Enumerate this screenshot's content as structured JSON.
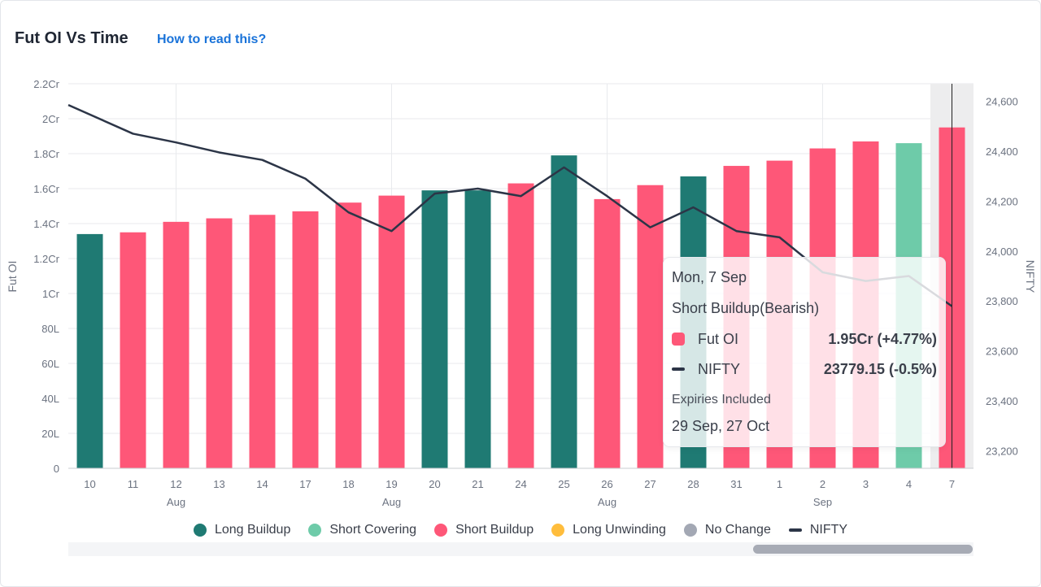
{
  "header": {
    "title": "Fut OI Vs Time",
    "help_link": "How to read this?"
  },
  "colors": {
    "long_buildup": "#1f7a73",
    "short_covering": "#6ecba9",
    "short_buildup": "#fe5778",
    "long_unwinding": "#ffbd3c",
    "no_change": "#a3a8b4",
    "nifty_line": "#2c3547",
    "gridline": "#e8eaed",
    "highlight_band": "#ededee"
  },
  "legend": [
    {
      "label": "Long Buildup",
      "color": "#1f7a73",
      "shape": "circle"
    },
    {
      "label": "Short Covering",
      "color": "#6ecba9",
      "shape": "circle"
    },
    {
      "label": "Short Buildup",
      "color": "#fe5778",
      "shape": "circle"
    },
    {
      "label": "Long Unwinding",
      "color": "#ffbd3c",
      "shape": "circle"
    },
    {
      "label": "No Change",
      "color": "#a3a8b4",
      "shape": "circle"
    },
    {
      "label": "NIFTY",
      "color": "#2c3547",
      "shape": "line"
    }
  ],
  "tooltip": {
    "date": "Mon, 7 Sep",
    "state": "Short Buildup(Bearish)",
    "rows": [
      {
        "label": "Fut OI",
        "value": "1.95Cr (+4.77%)",
        "icon": "square-swatch",
        "color": "#fe5778"
      },
      {
        "label": "NIFTY",
        "value": "23779.15 (-0.5%)",
        "icon": "line-swatch",
        "color": "#2c3547"
      }
    ],
    "expiries_label": "Expiries Included",
    "expiries": "29 Sep, 27 Oct"
  },
  "chart_data": {
    "type": "bar",
    "title": "Fut OI Vs Time",
    "ylabel": "Fut OI",
    "y2label": "NIFTY",
    "ylim": [
      0,
      22000000
    ],
    "y2lim": [
      23130,
      24670
    ],
    "y_ticks": [
      "0",
      "20L",
      "40L",
      "60L",
      "80L",
      "1Cr",
      "1.2Cr",
      "1.4Cr",
      "1.6Cr",
      "1.8Cr",
      "2Cr",
      "2.2Cr"
    ],
    "y2_ticks": [
      "23,200",
      "23,400",
      "23,600",
      "23,800",
      "24,000",
      "24,200",
      "24,400",
      "24,600"
    ],
    "categories": [
      "10",
      "11",
      "12",
      "13",
      "14",
      "17",
      "18",
      "19",
      "20",
      "21",
      "24",
      "25",
      "26",
      "27",
      "28",
      "31",
      "1",
      "2",
      "3",
      "4",
      "7"
    ],
    "month_labels": [
      {
        "label": "Aug",
        "under": "12"
      },
      {
        "label": "Aug",
        "under": "19"
      },
      {
        "label": "Aug",
        "under": "26"
      },
      {
        "label": "Sep",
        "under": "2"
      }
    ],
    "series": [
      {
        "name": "Fut OI",
        "values": [
          13400000,
          13500000,
          14100000,
          14300000,
          14500000,
          14700000,
          15200000,
          15600000,
          15900000,
          15900000,
          16300000,
          17900000,
          15400000,
          16200000,
          16700000,
          17300000,
          17600000,
          18300000,
          18700000,
          18600000,
          19500000
        ],
        "states": [
          "long_buildup",
          "short_buildup",
          "short_buildup",
          "short_buildup",
          "short_buildup",
          "short_buildup",
          "short_buildup",
          "short_buildup",
          "long_buildup",
          "long_buildup",
          "short_buildup",
          "long_buildup",
          "short_buildup",
          "short_buildup",
          "long_buildup",
          "short_buildup",
          "short_buildup",
          "short_buildup",
          "short_buildup",
          "short_covering",
          "short_buildup"
        ]
      },
      {
        "name": "NIFTY",
        "type": "line",
        "axis": "right",
        "x_start": "10",
        "values": [
          24585,
          24470,
          24435,
          24395,
          24365,
          24290,
          24155,
          24080,
          24230,
          24250,
          24220,
          24335,
          24220,
          24095,
          24175,
          24080,
          24055,
          23915,
          23880,
          23900,
          23779.15
        ]
      }
    ],
    "highlighted_category": "7",
    "grid": true
  }
}
